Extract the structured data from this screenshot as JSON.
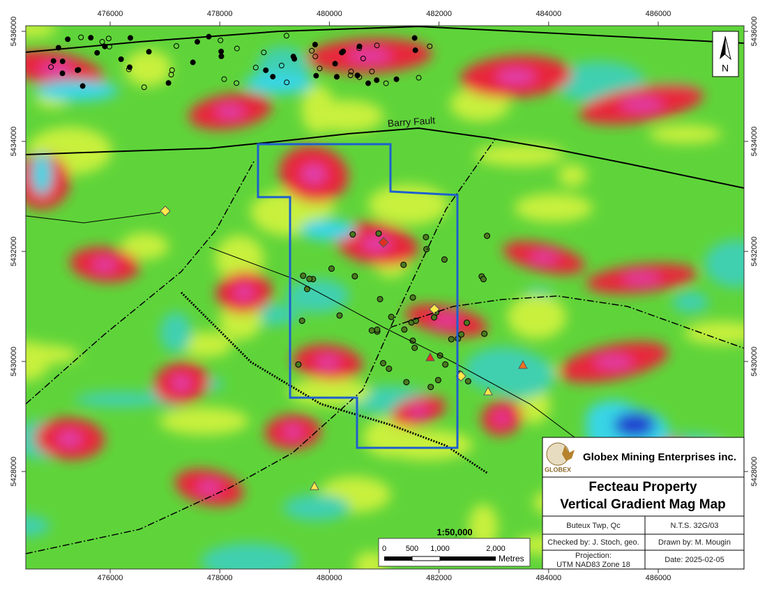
{
  "map": {
    "x_labels": [
      476000,
      478000,
      480000,
      482000,
      484000,
      486000
    ],
    "y_labels": [
      5436000,
      5434000,
      5432000,
      5430000,
      5428000
    ],
    "fault_label": "Barry Fault",
    "north": "N",
    "scale": {
      "ratio": "1:50,000",
      "labels": [
        "0",
        "500",
        "1,000",
        "2,000"
      ],
      "unit": "Metres"
    }
  },
  "legend": {
    "company": "Globex Mining Enterprises inc.",
    "logo_text": "GLOBEX",
    "title": [
      "Fecteau Property",
      "Vertical Gradient Mag Map"
    ],
    "township": "Buteux Twp, Qc",
    "nts": "N.T.S. 32G/03",
    "checked": "Checked by: J. Stoch, geo.",
    "drawn": "Drawn by: M. Mougin",
    "projection": [
      "Projection:",
      "UTM NAD83 Zone 18"
    ],
    "date": "Date: 2025-02-05"
  }
}
